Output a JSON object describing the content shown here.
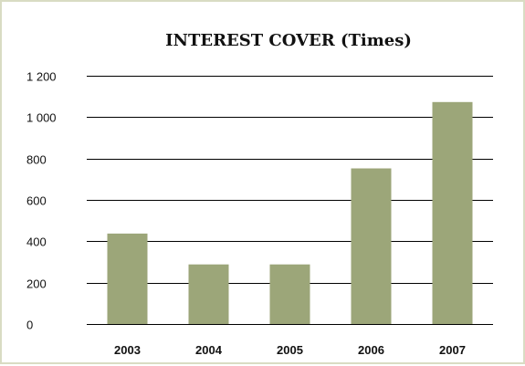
{
  "chart_data": {
    "type": "bar",
    "title": "INTEREST COVER (Times)",
    "categories": [
      "2003",
      "2004",
      "2005",
      "2006",
      "2007"
    ],
    "values": [
      437,
      288,
      288,
      752,
      1073
    ],
    "ylim": [
      0,
      1200
    ],
    "yticks": [
      0,
      200,
      400,
      600,
      800,
      1000,
      1200
    ],
    "ytick_labels": [
      "0",
      "200",
      "400",
      "600",
      "800",
      "1 000",
      "1 200"
    ],
    "grid": true,
    "bar_color": "#9ca679",
    "border_color": "#d9dcc3"
  }
}
